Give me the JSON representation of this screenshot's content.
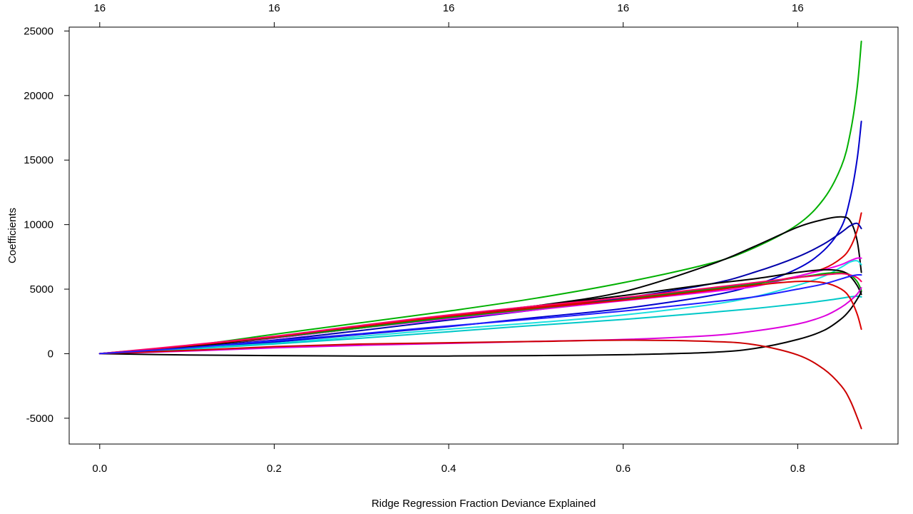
{
  "chart_data": {
    "type": "line",
    "title": "",
    "xlabel": "Ridge Regression Fraction Deviance Explained",
    "ylabel": "Coefficients",
    "xlim": [
      -0.035,
      0.915
    ],
    "ylim": [
      -7000,
      25300
    ],
    "x_ticks": [
      0.0,
      0.2,
      0.4,
      0.6,
      0.8
    ],
    "x_tick_labels": [
      "0.0",
      "0.2",
      "0.4",
      "0.6",
      "0.8"
    ],
    "y_ticks": [
      -5000,
      0,
      5000,
      10000,
      15000,
      20000,
      25000
    ],
    "y_tick_labels": [
      "-5000",
      "0",
      "5000",
      "10000",
      "15000",
      "20000",
      "25000"
    ],
    "top_axis_ticks": [
      0.0,
      0.2,
      0.4,
      0.6,
      0.8
    ],
    "top_axis_labels": [
      "16",
      "16",
      "16",
      "16",
      "16"
    ],
    "grid": false,
    "legend": "none",
    "series": [
      {
        "color": "#00b000",
        "points": [
          [
            0,
            0
          ],
          [
            0.1,
            600
          ],
          [
            0.2,
            1500
          ],
          [
            0.3,
            2400
          ],
          [
            0.4,
            3300
          ],
          [
            0.5,
            4300
          ],
          [
            0.6,
            5500
          ],
          [
            0.7,
            7000
          ],
          [
            0.75,
            8200
          ],
          [
            0.8,
            10000
          ],
          [
            0.83,
            12000
          ],
          [
            0.85,
            14500
          ],
          [
            0.86,
            17000
          ],
          [
            0.868,
            20500
          ],
          [
            0.873,
            24200
          ]
        ]
      },
      {
        "color": "#0000cc",
        "points": [
          [
            0,
            0
          ],
          [
            0.1,
            400
          ],
          [
            0.2,
            900
          ],
          [
            0.3,
            1500
          ],
          [
            0.4,
            2100
          ],
          [
            0.5,
            2800
          ],
          [
            0.6,
            3500
          ],
          [
            0.7,
            4500
          ],
          [
            0.75,
            5300
          ],
          [
            0.8,
            6600
          ],
          [
            0.83,
            8000
          ],
          [
            0.85,
            9800
          ],
          [
            0.86,
            12000
          ],
          [
            0.868,
            15000
          ],
          [
            0.873,
            18000
          ]
        ]
      },
      {
        "color": "#000000",
        "points": [
          [
            0,
            0
          ],
          [
            0.1,
            500
          ],
          [
            0.2,
            1200
          ],
          [
            0.3,
            2000
          ],
          [
            0.4,
            2800
          ],
          [
            0.5,
            3700
          ],
          [
            0.6,
            4800
          ],
          [
            0.7,
            6900
          ],
          [
            0.75,
            8300
          ],
          [
            0.8,
            9800
          ],
          [
            0.83,
            10400
          ],
          [
            0.85,
            10600
          ],
          [
            0.86,
            10300
          ],
          [
            0.868,
            8800
          ],
          [
            0.873,
            6300
          ]
        ]
      },
      {
        "color": "#dd0000",
        "points": [
          [
            0,
            0
          ],
          [
            0.1,
            600
          ],
          [
            0.2,
            1300
          ],
          [
            0.3,
            2100
          ],
          [
            0.4,
            2900
          ],
          [
            0.5,
            3600
          ],
          [
            0.6,
            4300
          ],
          [
            0.7,
            5000
          ],
          [
            0.75,
            5400
          ],
          [
            0.8,
            6000
          ],
          [
            0.83,
            6600
          ],
          [
            0.85,
            7400
          ],
          [
            0.86,
            8200
          ],
          [
            0.868,
            9500
          ],
          [
            0.873,
            10900
          ]
        ]
      },
      {
        "color": "#0000aa",
        "points": [
          [
            0,
            0
          ],
          [
            0.1,
            450
          ],
          [
            0.2,
            1050
          ],
          [
            0.3,
            1800
          ],
          [
            0.4,
            2600
          ],
          [
            0.5,
            3400
          ],
          [
            0.6,
            4300
          ],
          [
            0.7,
            5400
          ],
          [
            0.75,
            6300
          ],
          [
            0.8,
            7500
          ],
          [
            0.83,
            8500
          ],
          [
            0.85,
            9400
          ],
          [
            0.86,
            9900
          ],
          [
            0.868,
            10100
          ],
          [
            0.873,
            9700
          ]
        ]
      },
      {
        "color": "#ee00ee",
        "points": [
          [
            0,
            0
          ],
          [
            0.1,
            600
          ],
          [
            0.2,
            1200
          ],
          [
            0.3,
            2000
          ],
          [
            0.4,
            2700
          ],
          [
            0.5,
            3400
          ],
          [
            0.6,
            4100
          ],
          [
            0.7,
            4800
          ],
          [
            0.75,
            5200
          ],
          [
            0.8,
            6000
          ],
          [
            0.83,
            6500
          ],
          [
            0.85,
            6900
          ],
          [
            0.86,
            7200
          ],
          [
            0.868,
            7400
          ],
          [
            0.873,
            7400
          ]
        ]
      },
      {
        "color": "#1ce0e0",
        "points": [
          [
            0,
            0
          ],
          [
            0.1,
            400
          ],
          [
            0.2,
            800
          ],
          [
            0.3,
            1350
          ],
          [
            0.4,
            1900
          ],
          [
            0.5,
            2400
          ],
          [
            0.6,
            3000
          ],
          [
            0.7,
            3800
          ],
          [
            0.75,
            4400
          ],
          [
            0.8,
            5300
          ],
          [
            0.83,
            6000
          ],
          [
            0.85,
            6700
          ],
          [
            0.86,
            7100
          ],
          [
            0.868,
            7200
          ],
          [
            0.873,
            6900
          ]
        ]
      },
      {
        "color": "#00a000",
        "points": [
          [
            0,
            0
          ],
          [
            0.1,
            550
          ],
          [
            0.2,
            1250
          ],
          [
            0.3,
            2000
          ],
          [
            0.4,
            2800
          ],
          [
            0.5,
            3500
          ],
          [
            0.6,
            4200
          ],
          [
            0.7,
            5000
          ],
          [
            0.75,
            5400
          ],
          [
            0.8,
            5900
          ],
          [
            0.83,
            6200
          ],
          [
            0.85,
            6300
          ],
          [
            0.86,
            6100
          ],
          [
            0.868,
            5600
          ],
          [
            0.873,
            4900
          ]
        ]
      },
      {
        "color": "#000000",
        "points": [
          [
            0,
            0
          ],
          [
            0.1,
            550
          ],
          [
            0.2,
            1300
          ],
          [
            0.3,
            2150
          ],
          [
            0.4,
            2950
          ],
          [
            0.5,
            3700
          ],
          [
            0.6,
            4500
          ],
          [
            0.7,
            5400
          ],
          [
            0.75,
            5800
          ],
          [
            0.8,
            6300
          ],
          [
            0.83,
            6500
          ],
          [
            0.85,
            6400
          ],
          [
            0.86,
            6000
          ],
          [
            0.868,
            5300
          ],
          [
            0.873,
            4600
          ]
        ]
      },
      {
        "color": "#00c8c8",
        "points": [
          [
            0,
            0
          ],
          [
            0.1,
            350
          ],
          [
            0.2,
            750
          ],
          [
            0.3,
            1200
          ],
          [
            0.4,
            1700
          ],
          [
            0.5,
            2200
          ],
          [
            0.6,
            2650
          ],
          [
            0.7,
            3200
          ],
          [
            0.75,
            3500
          ],
          [
            0.8,
            3850
          ],
          [
            0.83,
            4100
          ],
          [
            0.85,
            4300
          ],
          [
            0.86,
            4400
          ],
          [
            0.868,
            4450
          ],
          [
            0.873,
            4400
          ]
        ]
      },
      {
        "color": "#dd00dd",
        "points": [
          [
            0,
            0
          ],
          [
            0.1,
            200
          ],
          [
            0.2,
            450
          ],
          [
            0.3,
            650
          ],
          [
            0.4,
            800
          ],
          [
            0.5,
            950
          ],
          [
            0.6,
            1100
          ],
          [
            0.7,
            1400
          ],
          [
            0.75,
            1750
          ],
          [
            0.8,
            2300
          ],
          [
            0.83,
            2900
          ],
          [
            0.85,
            3600
          ],
          [
            0.86,
            4100
          ],
          [
            0.868,
            4600
          ],
          [
            0.873,
            5100
          ]
        ]
      },
      {
        "color": "#000000",
        "points": [
          [
            0,
            0
          ],
          [
            0.1,
            -100
          ],
          [
            0.2,
            -150
          ],
          [
            0.3,
            -180
          ],
          [
            0.4,
            -180
          ],
          [
            0.5,
            -150
          ],
          [
            0.6,
            -80
          ],
          [
            0.7,
            100
          ],
          [
            0.75,
            400
          ],
          [
            0.8,
            1100
          ],
          [
            0.83,
            1800
          ],
          [
            0.85,
            2700
          ],
          [
            0.86,
            3400
          ],
          [
            0.868,
            4200
          ],
          [
            0.873,
            4800
          ]
        ]
      },
      {
        "color": "#cc0000",
        "points": [
          [
            0,
            0
          ],
          [
            0.1,
            250
          ],
          [
            0.2,
            550
          ],
          [
            0.3,
            750
          ],
          [
            0.4,
            850
          ],
          [
            0.5,
            950
          ],
          [
            0.6,
            1050
          ],
          [
            0.7,
            950
          ],
          [
            0.75,
            700
          ],
          [
            0.8,
            -100
          ],
          [
            0.83,
            -1200
          ],
          [
            0.85,
            -2500
          ],
          [
            0.86,
            -3600
          ],
          [
            0.868,
            -4900
          ],
          [
            0.873,
            -5800
          ]
        ]
      },
      {
        "color": "#dd0000",
        "points": [
          [
            0,
            0
          ],
          [
            0.1,
            600
          ],
          [
            0.2,
            1300
          ],
          [
            0.3,
            2150
          ],
          [
            0.4,
            2900
          ],
          [
            0.5,
            3550
          ],
          [
            0.6,
            4150
          ],
          [
            0.7,
            4900
          ],
          [
            0.75,
            5300
          ],
          [
            0.8,
            5600
          ],
          [
            0.83,
            5500
          ],
          [
            0.85,
            5000
          ],
          [
            0.86,
            4300
          ],
          [
            0.868,
            3100
          ],
          [
            0.873,
            1900
          ]
        ]
      },
      {
        "color": "#ff0066",
        "points": [
          [
            0,
            0
          ],
          [
            0.1,
            650
          ],
          [
            0.2,
            1350
          ],
          [
            0.3,
            2200
          ],
          [
            0.4,
            3000
          ],
          [
            0.5,
            3700
          ],
          [
            0.6,
            4350
          ],
          [
            0.7,
            5100
          ],
          [
            0.75,
            5500
          ],
          [
            0.8,
            5900
          ],
          [
            0.83,
            6100
          ],
          [
            0.85,
            6200
          ],
          [
            0.86,
            6100
          ],
          [
            0.868,
            5900
          ],
          [
            0.873,
            5600
          ]
        ]
      },
      {
        "color": "#2020ff",
        "points": [
          [
            0,
            0
          ],
          [
            0.1,
            450
          ],
          [
            0.2,
            1000
          ],
          [
            0.3,
            1550
          ],
          [
            0.4,
            2150
          ],
          [
            0.5,
            2700
          ],
          [
            0.6,
            3300
          ],
          [
            0.7,
            4000
          ],
          [
            0.75,
            4400
          ],
          [
            0.8,
            5000
          ],
          [
            0.83,
            5400
          ],
          [
            0.85,
            5800
          ],
          [
            0.86,
            6000
          ],
          [
            0.868,
            6100
          ],
          [
            0.873,
            6100
          ]
        ]
      }
    ]
  }
}
